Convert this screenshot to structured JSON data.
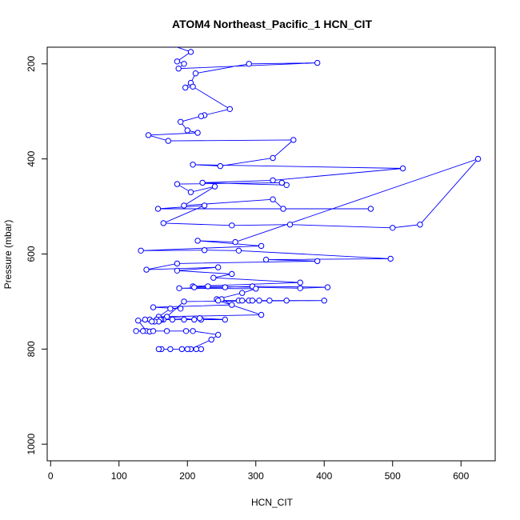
{
  "chart_data": {
    "type": "scatter",
    "title": "ATOM4 Northeast_Pacific_1 HCN_CIT",
    "xlabel": "HCN_CIT",
    "ylabel": "Pressure (mbar)",
    "xlim": [
      -5,
      650
    ],
    "ylim": [
      1035,
      165
    ],
    "y_reversed": true,
    "x_ticks": [
      0,
      100,
      200,
      300,
      400,
      500,
      600
    ],
    "y_ticks": [
      200,
      400,
      600,
      800,
      1000
    ],
    "x_tick_labels": [
      "0",
      "100",
      "200",
      "300",
      "400",
      "500",
      "600"
    ],
    "y_tick_labels": [
      "200",
      "400",
      "600",
      "800",
      "1000"
    ],
    "color": "#0000ff",
    "marker": "open-circle",
    "connected": true,
    "grid": false,
    "points": [
      [
        175,
        160
      ],
      [
        205,
        175
      ],
      [
        185,
        195
      ],
      [
        195,
        200
      ],
      [
        187,
        210
      ],
      [
        390,
        198
      ],
      [
        290,
        200
      ],
      [
        212,
        220
      ],
      [
        205,
        240
      ],
      [
        197,
        250
      ],
      [
        208,
        248
      ],
      [
        262,
        295
      ],
      [
        225,
        308
      ],
      [
        220,
        310
      ],
      [
        190,
        322
      ],
      [
        200,
        340
      ],
      [
        215,
        345
      ],
      [
        143,
        350
      ],
      [
        172,
        362
      ],
      [
        355,
        360
      ],
      [
        325,
        398
      ],
      [
        248,
        415
      ],
      [
        208,
        412
      ],
      [
        515,
        420
      ],
      [
        325,
        445
      ],
      [
        222,
        450
      ],
      [
        345,
        455
      ],
      [
        338,
        450
      ],
      [
        185,
        453
      ],
      [
        205,
        470
      ],
      [
        240,
        458
      ],
      [
        195,
        498
      ],
      [
        325,
        485
      ],
      [
        340,
        505
      ],
      [
        468,
        505
      ],
      [
        157,
        505
      ],
      [
        225,
        498
      ],
      [
        165,
        535
      ],
      [
        265,
        540
      ],
      [
        350,
        538
      ],
      [
        500,
        545
      ],
      [
        540,
        538
      ],
      [
        625,
        400
      ],
      [
        270,
        575
      ],
      [
        215,
        572
      ],
      [
        308,
        583
      ],
      [
        132,
        593
      ],
      [
        225,
        592
      ],
      [
        275,
        593
      ],
      [
        497,
        610
      ],
      [
        315,
        612
      ],
      [
        390,
        615
      ],
      [
        185,
        620
      ],
      [
        140,
        633
      ],
      [
        245,
        628
      ],
      [
        185,
        635
      ],
      [
        265,
        642
      ],
      [
        238,
        650
      ],
      [
        365,
        660
      ],
      [
        208,
        668
      ],
      [
        210,
        670
      ],
      [
        230,
        668
      ],
      [
        365,
        672
      ],
      [
        405,
        670
      ],
      [
        295,
        668
      ],
      [
        255,
        670
      ],
      [
        188,
        672
      ],
      [
        300,
        673
      ],
      [
        280,
        682
      ],
      [
        243,
        695
      ],
      [
        250,
        695
      ],
      [
        265,
        707
      ],
      [
        150,
        712
      ],
      [
        190,
        715
      ],
      [
        175,
        715
      ],
      [
        158,
        732
      ],
      [
        308,
        728
      ],
      [
        245,
        698
      ],
      [
        275,
        698
      ],
      [
        280,
        698
      ],
      [
        290,
        698
      ],
      [
        295,
        698
      ],
      [
        305,
        698
      ],
      [
        320,
        698
      ],
      [
        345,
        698
      ],
      [
        400,
        698
      ],
      [
        195,
        700
      ],
      [
        170,
        732
      ],
      [
        210,
        738
      ],
      [
        220,
        738
      ],
      [
        218,
        735
      ],
      [
        255,
        738
      ],
      [
        178,
        738
      ],
      [
        195,
        738
      ],
      [
        165,
        738
      ],
      [
        162,
        738
      ],
      [
        160,
        738
      ],
      [
        155,
        738
      ],
      [
        145,
        738
      ],
      [
        138,
        738
      ],
      [
        158,
        742
      ],
      [
        152,
        742
      ],
      [
        148,
        742
      ],
      [
        128,
        740
      ],
      [
        140,
        762
      ],
      [
        145,
        763
      ],
      [
        125,
        762
      ],
      [
        135,
        762
      ],
      [
        150,
        762
      ],
      [
        170,
        762
      ],
      [
        198,
        762
      ],
      [
        208,
        762
      ],
      [
        245,
        770
      ],
      [
        235,
        780
      ],
      [
        205,
        800
      ],
      [
        220,
        800
      ],
      [
        200,
        800
      ],
      [
        192,
        800
      ],
      [
        175,
        800
      ],
      [
        162,
        800
      ],
      [
        158,
        800
      ],
      [
        213,
        800
      ]
    ]
  }
}
